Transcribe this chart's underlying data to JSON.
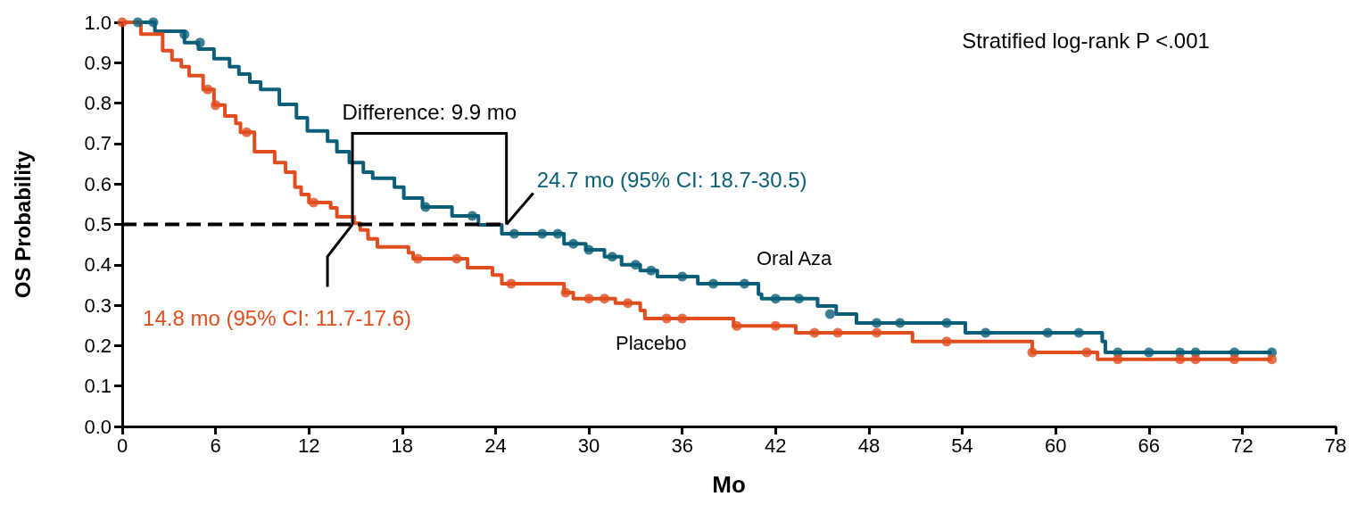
{
  "chart_data": {
    "type": "step",
    "xlabel": "Mo",
    "ylabel": "OS Probability",
    "xlim": [
      0,
      78
    ],
    "xticks": [
      0,
      6,
      12,
      18,
      24,
      30,
      36,
      42,
      48,
      54,
      60,
      66,
      72,
      78
    ],
    "ylim": [
      0,
      1
    ],
    "yticks": [
      {
        "value": 0,
        "label": "0.0"
      },
      {
        "value": 0.1,
        "label": "0.1"
      },
      {
        "value": 0.2,
        "label": "0.2"
      },
      {
        "value": 0.3,
        "label": "0.3"
      },
      {
        "value": 0.4,
        "label": "0.4"
      },
      {
        "value": 0.5,
        "label": "0.5"
      },
      {
        "value": 0.6,
        "label": "0.6"
      },
      {
        "value": 0.7,
        "label": "0.7"
      },
      {
        "value": 0.8,
        "label": "0.8"
      },
      {
        "value": 0.9,
        "label": "0.9"
      },
      {
        "value": 1,
        "label": "1.0"
      }
    ],
    "marker": "none",
    "line_style": "solid",
    "annotations": [
      "Stratified log-rank P <.001",
      "Difference: 9.9 mo",
      {
        "text": "24.7 mo (95% CI: 18.7-30.5)",
        "x": 24.7,
        "y": 0.5
      },
      {
        "text": "14.8 mo (95% CI: 11.7-17.6)",
        "x": 14.8,
        "y": 0.5
      }
    ],
    "series": [
      {
        "name": "Oral Aza",
        "color": "#0b5e78",
        "x": [
          0,
          2.1,
          4,
          4.9,
          5.9,
          6.9,
          7.5,
          8.2,
          8.9,
          10.1,
          11.2,
          11.9,
          13.2,
          13.8,
          14.6,
          15.5,
          16.1,
          17.5,
          18.1,
          19.3,
          21.2,
          22.9,
          24.4,
          28.4,
          29.8,
          31,
          32.1,
          33.3,
          34.4,
          37,
          40.9,
          41.1,
          44.7,
          45.9,
          47.2,
          54.2,
          63,
          63.2,
          73.9
        ],
        "values": [
          1,
          0.978,
          0.95,
          0.934,
          0.91,
          0.89,
          0.872,
          0.852,
          0.834,
          0.797,
          0.764,
          0.731,
          0.706,
          0.68,
          0.653,
          0.629,
          0.614,
          0.592,
          0.565,
          0.543,
          0.521,
          0.499,
          0.477,
          0.452,
          0.437,
          0.42,
          0.4,
          0.386,
          0.371,
          0.353,
          0.327,
          0.316,
          0.298,
          0.278,
          0.256,
          0.232,
          0.21,
          0.183,
          0.183
        ]
      },
      {
        "name": "Placebo",
        "color": "#e04e1f",
        "x": [
          0,
          1.2,
          2.6,
          3.2,
          3.8,
          4.3,
          5.2,
          5.9,
          6.6,
          7.3,
          7.6,
          8.5,
          9.8,
          10.5,
          11.1,
          11.5,
          12,
          13.4,
          13.8,
          14.9,
          15.3,
          15.8,
          16.4,
          18.4,
          18.7,
          22.2,
          23.8,
          24.4,
          28.4,
          29,
          31.7,
          33.3,
          33.6,
          39.3,
          43.3,
          50.8,
          58.5,
          62.7,
          73.9
        ],
        "values": [
          1,
          0.971,
          0.93,
          0.907,
          0.89,
          0.868,
          0.834,
          0.795,
          0.768,
          0.75,
          0.728,
          0.68,
          0.653,
          0.629,
          0.592,
          0.574,
          0.554,
          0.541,
          0.519,
          0.503,
          0.486,
          0.464,
          0.444,
          0.43,
          0.415,
          0.393,
          0.375,
          0.353,
          0.331,
          0.316,
          0.305,
          0.287,
          0.267,
          0.249,
          0.232,
          0.21,
          0.183,
          0.166,
          0.166
        ]
      },
      {
        "type": "scatter",
        "marker": "circle",
        "color": "#0b5e78",
        "x": [
          1,
          2,
          4,
          5,
          19.5,
          22.5,
          25.2,
          27,
          28,
          29,
          30,
          31.5,
          33,
          34,
          36,
          38,
          40,
          42,
          43.5,
          45.5,
          48.5,
          50,
          53,
          55.5,
          59.5,
          61.5,
          64,
          66,
          68,
          69,
          71.5,
          73.9
        ],
        "values": [
          1,
          1,
          0.97,
          0.95,
          0.543,
          0.521,
          0.477,
          0.477,
          0.477,
          0.452,
          0.437,
          0.42,
          0.4,
          0.386,
          0.371,
          0.353,
          0.353,
          0.316,
          0.316,
          0.278,
          0.256,
          0.256,
          0.256,
          0.232,
          0.232,
          0.232,
          0.183,
          0.183,
          0.183,
          0.183,
          0.183,
          0.183
        ]
      },
      {
        "type": "scatter",
        "marker": "circle",
        "color": "#e04e1f",
        "x": [
          0,
          5.5,
          6,
          8,
          12.3,
          19,
          21.5,
          25,
          28.5,
          30,
          31,
          32.5,
          35,
          36,
          39.5,
          42,
          44.5,
          46,
          48.5,
          53,
          58.5,
          62,
          64,
          68,
          69,
          71.5,
          73.9
        ],
        "values": [
          1,
          0.834,
          0.795,
          0.728,
          0.554,
          0.415,
          0.415,
          0.353,
          0.331,
          0.316,
          0.316,
          0.305,
          0.267,
          0.267,
          0.249,
          0.249,
          0.232,
          0.232,
          0.232,
          0.21,
          0.183,
          0.183,
          0.166,
          0.166,
          0.166,
          0.166,
          0.166
        ]
      },
      {
        "type": "line",
        "color": "#000000",
        "line_style": "dashed",
        "x": [
          0,
          24.7
        ],
        "values": [
          0.5,
          0.5
        ]
      }
    ]
  }
}
